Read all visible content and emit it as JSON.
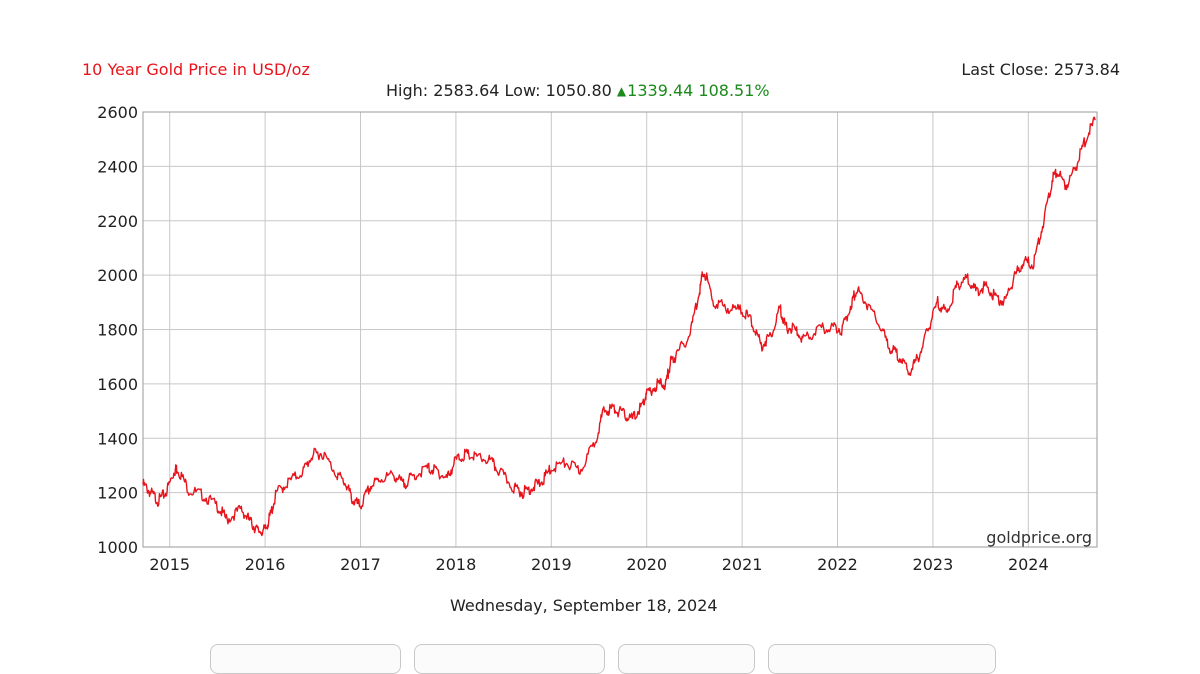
{
  "header": {
    "title": "10 Year Gold Price in USD/oz",
    "last_close_label": "Last Close: 2573.84",
    "high_label": "High:",
    "high_value": "2583.64",
    "low_label": "Low:",
    "low_value": "1050.80",
    "change_value": "1339.44",
    "change_percent": "108.51%"
  },
  "footer": {
    "date": "Wednesday, September 18, 2024"
  },
  "watermark": "goldprice.org",
  "colors": {
    "line": "#e8141c",
    "title": "#e8141c",
    "up": "#1a8a1a",
    "grid": "#c8c8c8"
  },
  "chart_data": {
    "type": "line",
    "title": "10 Year Gold Price in USD/oz",
    "xlabel": "",
    "ylabel": "",
    "xlim": [
      2014.72,
      2024.72
    ],
    "ylim": [
      1000,
      2600
    ],
    "y_ticks": [
      1000,
      1200,
      1400,
      1600,
      1800,
      2000,
      2200,
      2400,
      2600
    ],
    "x_ticks": [
      {
        "label": "2015",
        "value": 2015
      },
      {
        "label": "2016",
        "value": 2016
      },
      {
        "label": "2017",
        "value": 2017
      },
      {
        "label": "2018",
        "value": 2018
      },
      {
        "label": "2019",
        "value": 2019
      },
      {
        "label": "2020",
        "value": 2020
      },
      {
        "label": "2021",
        "value": 2021
      },
      {
        "label": "2022",
        "value": 2022
      },
      {
        "label": "2023",
        "value": 2023
      },
      {
        "label": "2024",
        "value": 2024
      }
    ],
    "grid": true,
    "legend": "none",
    "series": [
      {
        "x": [
          2014.72,
          2014.8,
          2014.88,
          2014.96,
          2015.05,
          2015.08,
          2015.2,
          2015.35,
          2015.5,
          2015.6,
          2015.75,
          2015.85,
          2015.92,
          2016.0,
          2016.05,
          2016.12,
          2016.25,
          2016.4,
          2016.5,
          2016.6,
          2016.75,
          2016.85,
          2016.92,
          2017.0,
          2017.1,
          2017.2,
          2017.35,
          2017.45,
          2017.55,
          2017.7,
          2017.8,
          2017.9,
          2018.0,
          2018.1,
          2018.2,
          2018.35,
          2018.45,
          2018.6,
          2018.7,
          2018.8,
          2018.9,
          2019.0,
          2019.15,
          2019.3,
          2019.45,
          2019.55,
          2019.65,
          2019.75,
          2019.85,
          2019.95,
          2020.0,
          2020.12,
          2020.2,
          2020.25,
          2020.3,
          2020.45,
          2020.55,
          2020.6,
          2020.7,
          2020.85,
          2021.0,
          2021.1,
          2021.2,
          2021.3,
          2021.4,
          2021.45,
          2021.55,
          2021.65,
          2021.8,
          2021.95,
          2022.05,
          2022.15,
          2022.2,
          2022.3,
          2022.45,
          2022.55,
          2022.65,
          2022.75,
          2022.85,
          2022.95,
          2023.05,
          2023.15,
          2023.25,
          2023.35,
          2023.45,
          2023.55,
          2023.65,
          2023.75,
          2023.85,
          2023.95,
          2024.05,
          2024.15,
          2024.25,
          2024.3,
          2024.4,
          2024.5,
          2024.6,
          2024.7
        ],
        "y": [
          1230,
          1200,
          1170,
          1200,
          1280,
          1290,
          1210,
          1190,
          1150,
          1100,
          1140,
          1090,
          1060,
          1060,
          1110,
          1200,
          1240,
          1280,
          1340,
          1345,
          1270,
          1230,
          1170,
          1150,
          1220,
          1250,
          1265,
          1230,
          1260,
          1290,
          1280,
          1250,
          1320,
          1340,
          1330,
          1320,
          1280,
          1220,
          1200,
          1220,
          1240,
          1290,
          1310,
          1280,
          1380,
          1500,
          1510,
          1490,
          1470,
          1520,
          1560,
          1600,
          1600,
          1680,
          1700,
          1780,
          1940,
          2020,
          1900,
          1880,
          1870,
          1830,
          1740,
          1780,
          1880,
          1810,
          1800,
          1760,
          1800,
          1810,
          1800,
          1900,
          1950,
          1900,
          1810,
          1730,
          1700,
          1640,
          1700,
          1800,
          1900,
          1860,
          1960,
          1990,
          1940,
          1960,
          1920,
          1900,
          1990,
          2050,
          2040,
          2180,
          2350,
          2380,
          2330,
          2400,
          2500,
          2570
        ]
      }
    ]
  }
}
